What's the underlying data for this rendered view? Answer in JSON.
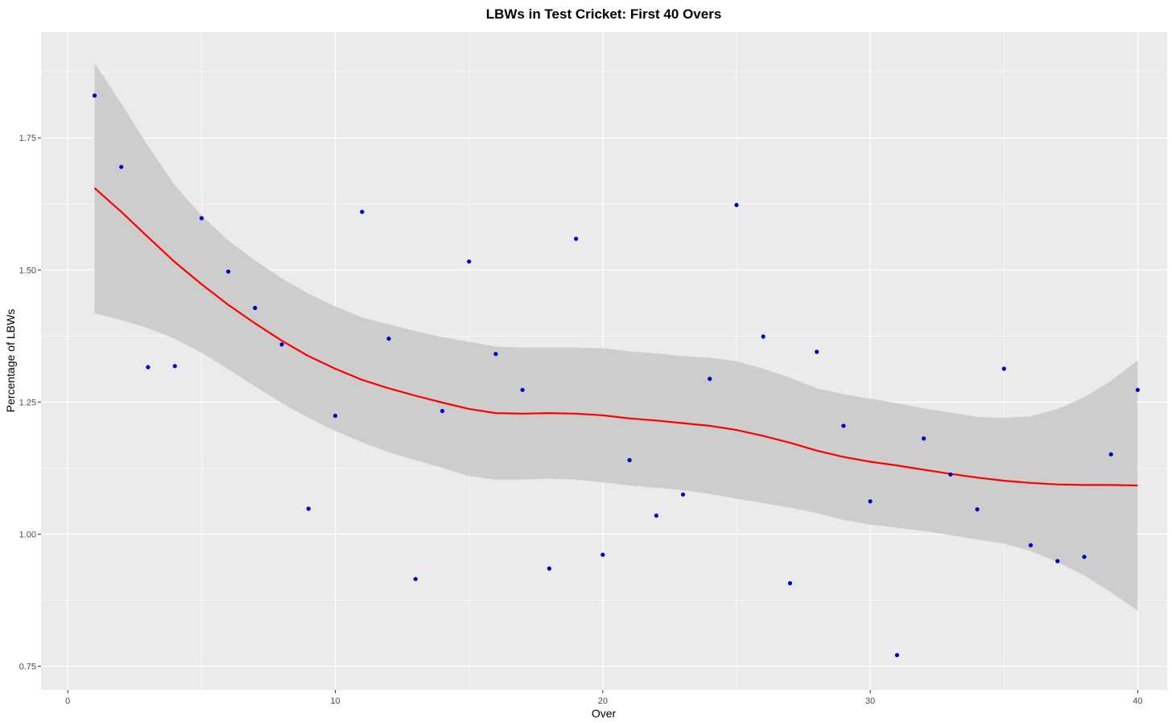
{
  "chart_data": {
    "type": "scatter",
    "title": "LBWs in Test Cricket: First 40 Overs",
    "xlabel": "Over",
    "ylabel": "Percentage of LBWs",
    "xlim": [
      -1,
      41.1
    ],
    "ylim": [
      0.705,
      1.95
    ],
    "x_ticks": [
      0,
      10,
      20,
      30,
      40
    ],
    "x_tick_labels": [
      "0",
      "10",
      "20",
      "30",
      "40"
    ],
    "y_ticks": [
      0.75,
      1.0,
      1.25,
      1.5,
      1.75
    ],
    "y_tick_labels": [
      "0.75",
      "1.00",
      "1.25",
      "1.50",
      "1.75"
    ],
    "grid": true,
    "colors": {
      "panel": "#ebebeb",
      "grid": "#ffffff",
      "points": "#0000cc",
      "smooth_line": "#ff0000",
      "band": "#c8c8c8"
    },
    "points": [
      {
        "x": 1,
        "y": 1.83
      },
      {
        "x": 2,
        "y": 1.695
      },
      {
        "x": 3,
        "y": 1.316
      },
      {
        "x": 4,
        "y": 1.318
      },
      {
        "x": 5,
        "y": 1.598
      },
      {
        "x": 6,
        "y": 1.497
      },
      {
        "x": 7,
        "y": 1.428
      },
      {
        "x": 8,
        "y": 1.359
      },
      {
        "x": 9,
        "y": 1.048
      },
      {
        "x": 10,
        "y": 1.224
      },
      {
        "x": 11,
        "y": 1.61
      },
      {
        "x": 12,
        "y": 1.37
      },
      {
        "x": 13,
        "y": 0.915
      },
      {
        "x": 14,
        "y": 1.233
      },
      {
        "x": 15,
        "y": 1.516
      },
      {
        "x": 16,
        "y": 1.341
      },
      {
        "x": 17,
        "y": 1.273
      },
      {
        "x": 18,
        "y": 0.935
      },
      {
        "x": 19,
        "y": 1.559
      },
      {
        "x": 20,
        "y": 0.961
      },
      {
        "x": 21,
        "y": 1.14
      },
      {
        "x": 22,
        "y": 1.035
      },
      {
        "x": 23,
        "y": 1.075
      },
      {
        "x": 24,
        "y": 1.294
      },
      {
        "x": 25,
        "y": 1.623
      },
      {
        "x": 26,
        "y": 1.374
      },
      {
        "x": 27,
        "y": 0.907
      },
      {
        "x": 28,
        "y": 1.345
      },
      {
        "x": 29,
        "y": 1.205
      },
      {
        "x": 30,
        "y": 1.062
      },
      {
        "x": 31,
        "y": 0.771
      },
      {
        "x": 32,
        "y": 1.181
      },
      {
        "x": 33,
        "y": 1.113
      },
      {
        "x": 34,
        "y": 1.047
      },
      {
        "x": 35,
        "y": 1.313
      },
      {
        "x": 36,
        "y": 0.979
      },
      {
        "x": 37,
        "y": 0.949
      },
      {
        "x": 38,
        "y": 0.957
      },
      {
        "x": 39,
        "y": 1.151
      },
      {
        "x": 40,
        "y": 1.273
      }
    ],
    "smooth": {
      "x": [
        1,
        2,
        3,
        4,
        5,
        6,
        7,
        8,
        9,
        10,
        11,
        12,
        13,
        14,
        15,
        16,
        17,
        18,
        19,
        20,
        21,
        22,
        23,
        24,
        25,
        26,
        27,
        28,
        29,
        30,
        31,
        32,
        33,
        34,
        35,
        36,
        37,
        38,
        39,
        40
      ],
      "fit": [
        1.655,
        1.61,
        1.562,
        1.515,
        1.473,
        1.434,
        1.399,
        1.366,
        1.337,
        1.313,
        1.292,
        1.276,
        1.262,
        1.249,
        1.237,
        1.229,
        1.228,
        1.229,
        1.228,
        1.225,
        1.219,
        1.215,
        1.21,
        1.205,
        1.197,
        1.186,
        1.173,
        1.158,
        1.146,
        1.137,
        1.13,
        1.122,
        1.114,
        1.107,
        1.101,
        1.097,
        1.094,
        1.093,
        1.093,
        1.092
      ],
      "lower": [
        1.418,
        1.405,
        1.39,
        1.37,
        1.343,
        1.312,
        1.28,
        1.248,
        1.22,
        1.195,
        1.174,
        1.155,
        1.14,
        1.125,
        1.11,
        1.103,
        1.103,
        1.105,
        1.103,
        1.098,
        1.092,
        1.088,
        1.083,
        1.076,
        1.067,
        1.059,
        1.05,
        1.04,
        1.027,
        1.018,
        1.012,
        1.006,
        0.998,
        0.99,
        0.982,
        0.968,
        0.947,
        0.922,
        0.89,
        0.855
      ],
      "upper": [
        1.892,
        1.815,
        1.735,
        1.66,
        1.603,
        1.556,
        1.518,
        1.484,
        1.455,
        1.431,
        1.41,
        1.397,
        1.384,
        1.373,
        1.364,
        1.355,
        1.353,
        1.353,
        1.353,
        1.352,
        1.346,
        1.342,
        1.337,
        1.334,
        1.327,
        1.313,
        1.296,
        1.276,
        1.265,
        1.256,
        1.248,
        1.238,
        1.23,
        1.222,
        1.22,
        1.223,
        1.237,
        1.259,
        1.29,
        1.329
      ]
    }
  }
}
